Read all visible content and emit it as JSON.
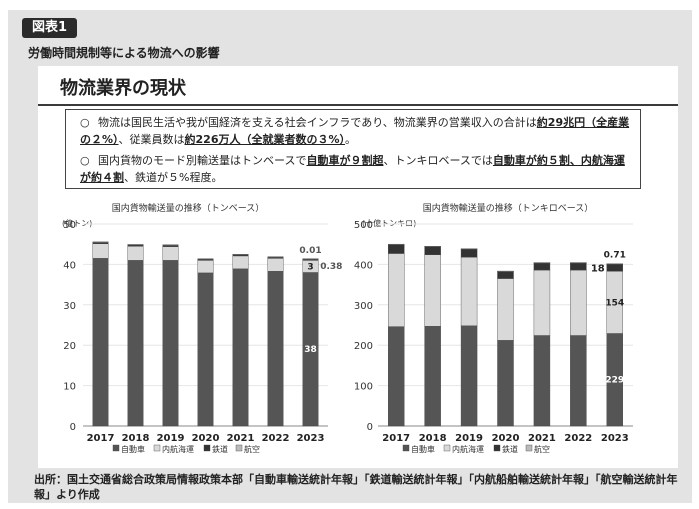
{
  "badge": "図表1",
  "subtitle": "労働時間規制等による物流への影響",
  "panel_title": "物流業界の現状",
  "notes": [
    {
      "mark": "○",
      "p1": "物流は国民生活や我が国経済を支える社会インフラであり、物流業界の営業収入の合計は",
      "e1": "約29兆円（全産業の２%）",
      "p2": "、従業員数は",
      "e2": "約226万人（全就業者数の３%）",
      "p3": "。"
    },
    {
      "mark": "○",
      "p1": "国内貨物のモード別輸送量はトンベースで",
      "e1": "自動車が９割超",
      "p2": "、トンキロベースでは",
      "e2": "自動車が約５割、内航海運が約４割",
      "p3": "、鉄道が５%程度。"
    }
  ],
  "legend": [
    "自動車",
    "内航海運",
    "鉄道",
    "航空"
  ],
  "colors": {
    "auto": "#555555",
    "naiko": "#d9d9d9",
    "tetsudo": "#333333",
    "koku": "#bbbbbb"
  },
  "chart_data": [
    {
      "type": "bar",
      "stacked": true,
      "title": "国内貨物輸送量の推移（トンベース）",
      "unit": "(億トン)",
      "categories": [
        "2017",
        "2018",
        "2019",
        "2020",
        "2021",
        "2022",
        "2023"
      ],
      "ylim": [
        0,
        50
      ],
      "yticks": [
        0,
        10,
        20,
        30,
        40,
        50
      ],
      "series": [
        {
          "name": "自動車",
          "values": [
            41.5,
            41.0,
            41.0,
            37.9,
            38.9,
            38.3,
            38
          ]
        },
        {
          "name": "内航海運",
          "values": [
            3.6,
            3.5,
            3.4,
            3.1,
            3.2,
            3.2,
            3
          ]
        },
        {
          "name": "鉄道",
          "values": [
            0.45,
            0.42,
            0.43,
            0.39,
            0.39,
            0.38,
            0.38
          ]
        },
        {
          "name": "航空",
          "values": [
            0.01,
            0.01,
            0.01,
            0.005,
            0.005,
            0.005,
            0.01
          ]
        }
      ],
      "labels_2023": {
        "自動車": "38",
        "内航海運": "3",
        "鉄道": "0.38",
        "航空": "0.01"
      }
    },
    {
      "type": "bar",
      "stacked": true,
      "title": "国内貨物輸送量の推移（トンキロベース）",
      "unit": "(十億トンキロ)",
      "categories": [
        "2017",
        "2018",
        "2019",
        "2020",
        "2021",
        "2022",
        "2023"
      ],
      "ylim": [
        0,
        500
      ],
      "yticks": [
        0,
        100,
        200,
        300,
        400,
        500
      ],
      "series": [
        {
          "name": "自動車",
          "values": [
            246,
            247,
            248,
            212,
            224,
            224,
            229
          ]
        },
        {
          "name": "内航海運",
          "values": [
            181,
            177,
            170,
            153,
            162,
            162,
            154
          ]
        },
        {
          "name": "鉄道",
          "values": [
            22,
            20,
            20,
            18,
            18,
            18,
            18
          ]
        },
        {
          "name": "航空",
          "values": [
            1.1,
            1.0,
            1.0,
            0.5,
            0.6,
            0.7,
            0.71
          ]
        }
      ],
      "labels_2023": {
        "自動車": "229",
        "内航海運": "154",
        "鉄道": "18",
        "航空": "0.71"
      }
    }
  ],
  "source": "出所：国土交通省総合政策局情報政策本部「自動車輸送統計年報」「鉄道輸送統計年報」「内航船舶輸送統計年報」「航空輸送統計年報」より作成"
}
